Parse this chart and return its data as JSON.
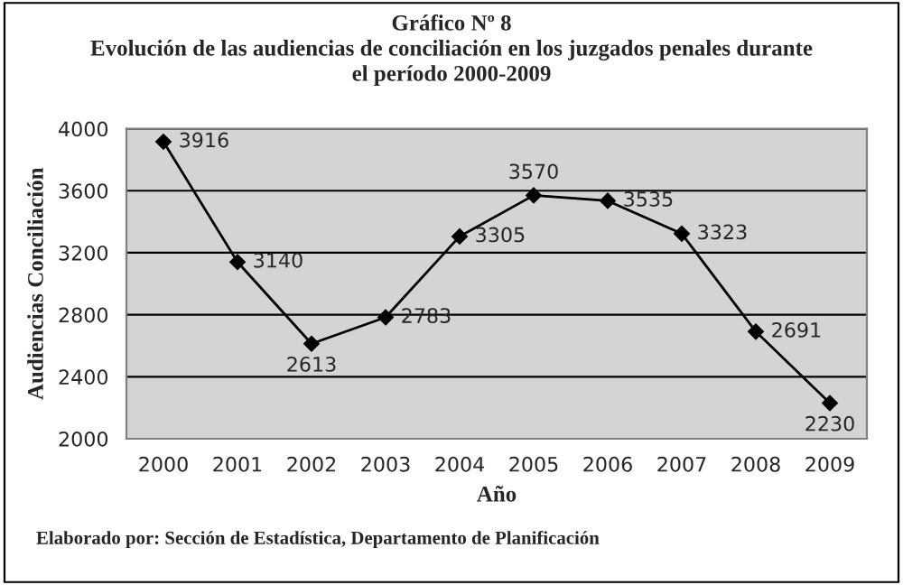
{
  "chart_data": {
    "type": "line",
    "title": "Gráfico Nº 8\nEvolución de las audiencias de conciliación en los juzgados penales durante\nel período 2000-2009",
    "xlabel": "Año",
    "ylabel": "Audiencias Conciliación",
    "categories": [
      "2000",
      "2001",
      "2002",
      "2003",
      "2004",
      "2005",
      "2006",
      "2007",
      "2008",
      "2009"
    ],
    "series": [
      {
        "color": "#000000",
        "values": [
          3916,
          3140,
          2613,
          2783,
          3305,
          3570,
          3535,
          3323,
          2691,
          2230
        ]
      }
    ],
    "ylim": [
      2000,
      4000
    ],
    "yticks": [
      2000,
      2400,
      2800,
      3200,
      3600,
      4000
    ],
    "grid": "y",
    "marker": "diamond",
    "line_style": "solid",
    "data_labels": true,
    "legend": false,
    "annotations": [
      "Elaborado por: Sección de Estadística, Departamento de Planificación"
    ]
  }
}
